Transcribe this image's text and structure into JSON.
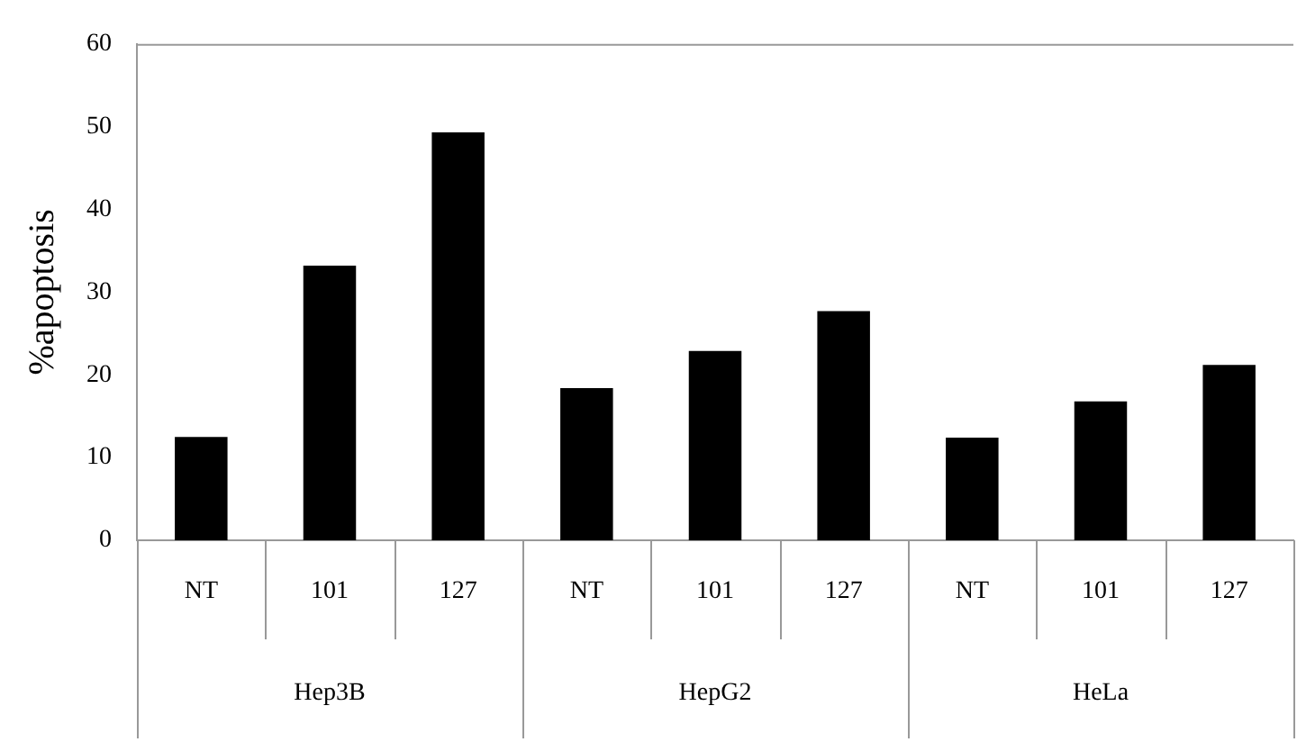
{
  "chart_data": {
    "type": "bar",
    "ylabel": "%apoptosis",
    "categories": [
      "NT",
      "101",
      "127",
      "NT",
      "101",
      "127",
      "NT",
      "101",
      "127"
    ],
    "values": [
      12.5,
      33.2,
      49.3,
      18.4,
      22.9,
      27.7,
      12.4,
      16.8,
      21.2
    ],
    "color": "#000000",
    "annotations": [
      "Hep3B",
      "HepG2",
      "HeLa"
    ],
    "ylim": [
      0,
      60
    ],
    "yticks": [
      0,
      10,
      20,
      30,
      40,
      50,
      60
    ],
    "grid": false,
    "legend": false
  }
}
